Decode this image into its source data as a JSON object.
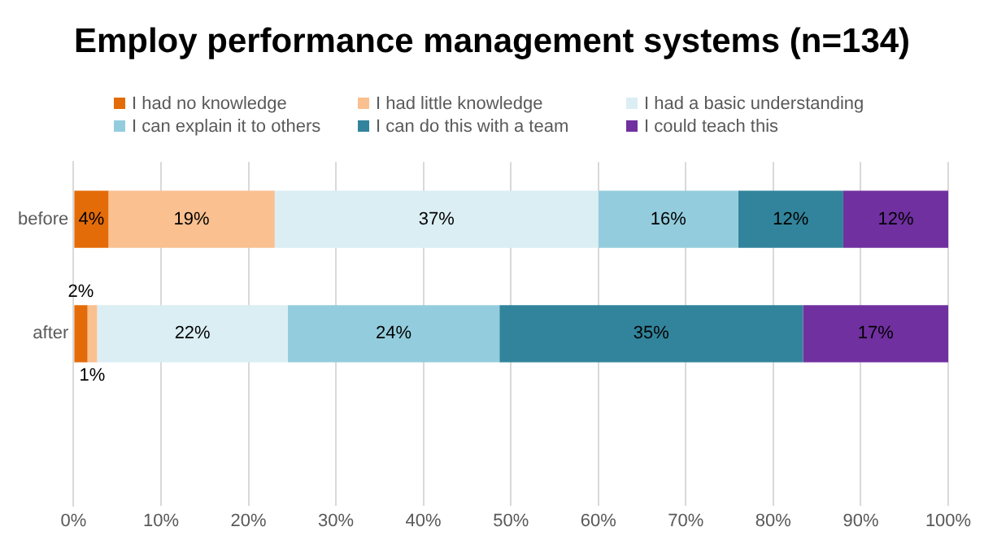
{
  "chart_data": {
    "type": "bar",
    "title": "Employ performance management systems (n=134)",
    "orientation": "horizontal",
    "stacked": true,
    "categories": [
      "before",
      "after"
    ],
    "series": [
      {
        "name": "I had no knowledge",
        "color": "#e36c09",
        "values": [
          4,
          1.6
        ]
      },
      {
        "name": "I had little knowledge",
        "color": "#fac090",
        "values": [
          19,
          1.1
        ]
      },
      {
        "name": "I had a basic understanding",
        "color": "#dbeef4",
        "values": [
          37,
          21.8
        ]
      },
      {
        "name": "I can explain it to others",
        "color": "#93cddd",
        "values": [
          16,
          24.2
        ]
      },
      {
        "name": "I can do this with a team",
        "color": "#31849b",
        "values": [
          12,
          34.7
        ]
      },
      {
        "name": "I could teach this",
        "color": "#7030a0",
        "values": [
          12,
          16.6
        ]
      }
    ],
    "xlim": [
      0,
      100
    ],
    "xticks": [
      {
        "value": 0,
        "label": "0%"
      },
      {
        "value": 10,
        "label": "10%"
      },
      {
        "value": 20,
        "label": "20%"
      },
      {
        "value": 30,
        "label": "30%"
      },
      {
        "value": 40,
        "label": "40%"
      },
      {
        "value": 50,
        "label": "50%"
      },
      {
        "value": 60,
        "label": "60%"
      },
      {
        "value": 70,
        "label": "70%"
      },
      {
        "value": 80,
        "label": "80%"
      },
      {
        "value": 90,
        "label": "90%"
      },
      {
        "value": 100,
        "label": "100%"
      }
    ],
    "value_labels": [
      [
        "4%",
        "2%"
      ],
      [
        "19%",
        "1%"
      ],
      [
        "37%",
        "22%"
      ],
      [
        "16%",
        "24%"
      ],
      [
        "12%",
        "35%"
      ],
      [
        "12%",
        "17%"
      ]
    ],
    "grid": "x",
    "legend": "top"
  }
}
